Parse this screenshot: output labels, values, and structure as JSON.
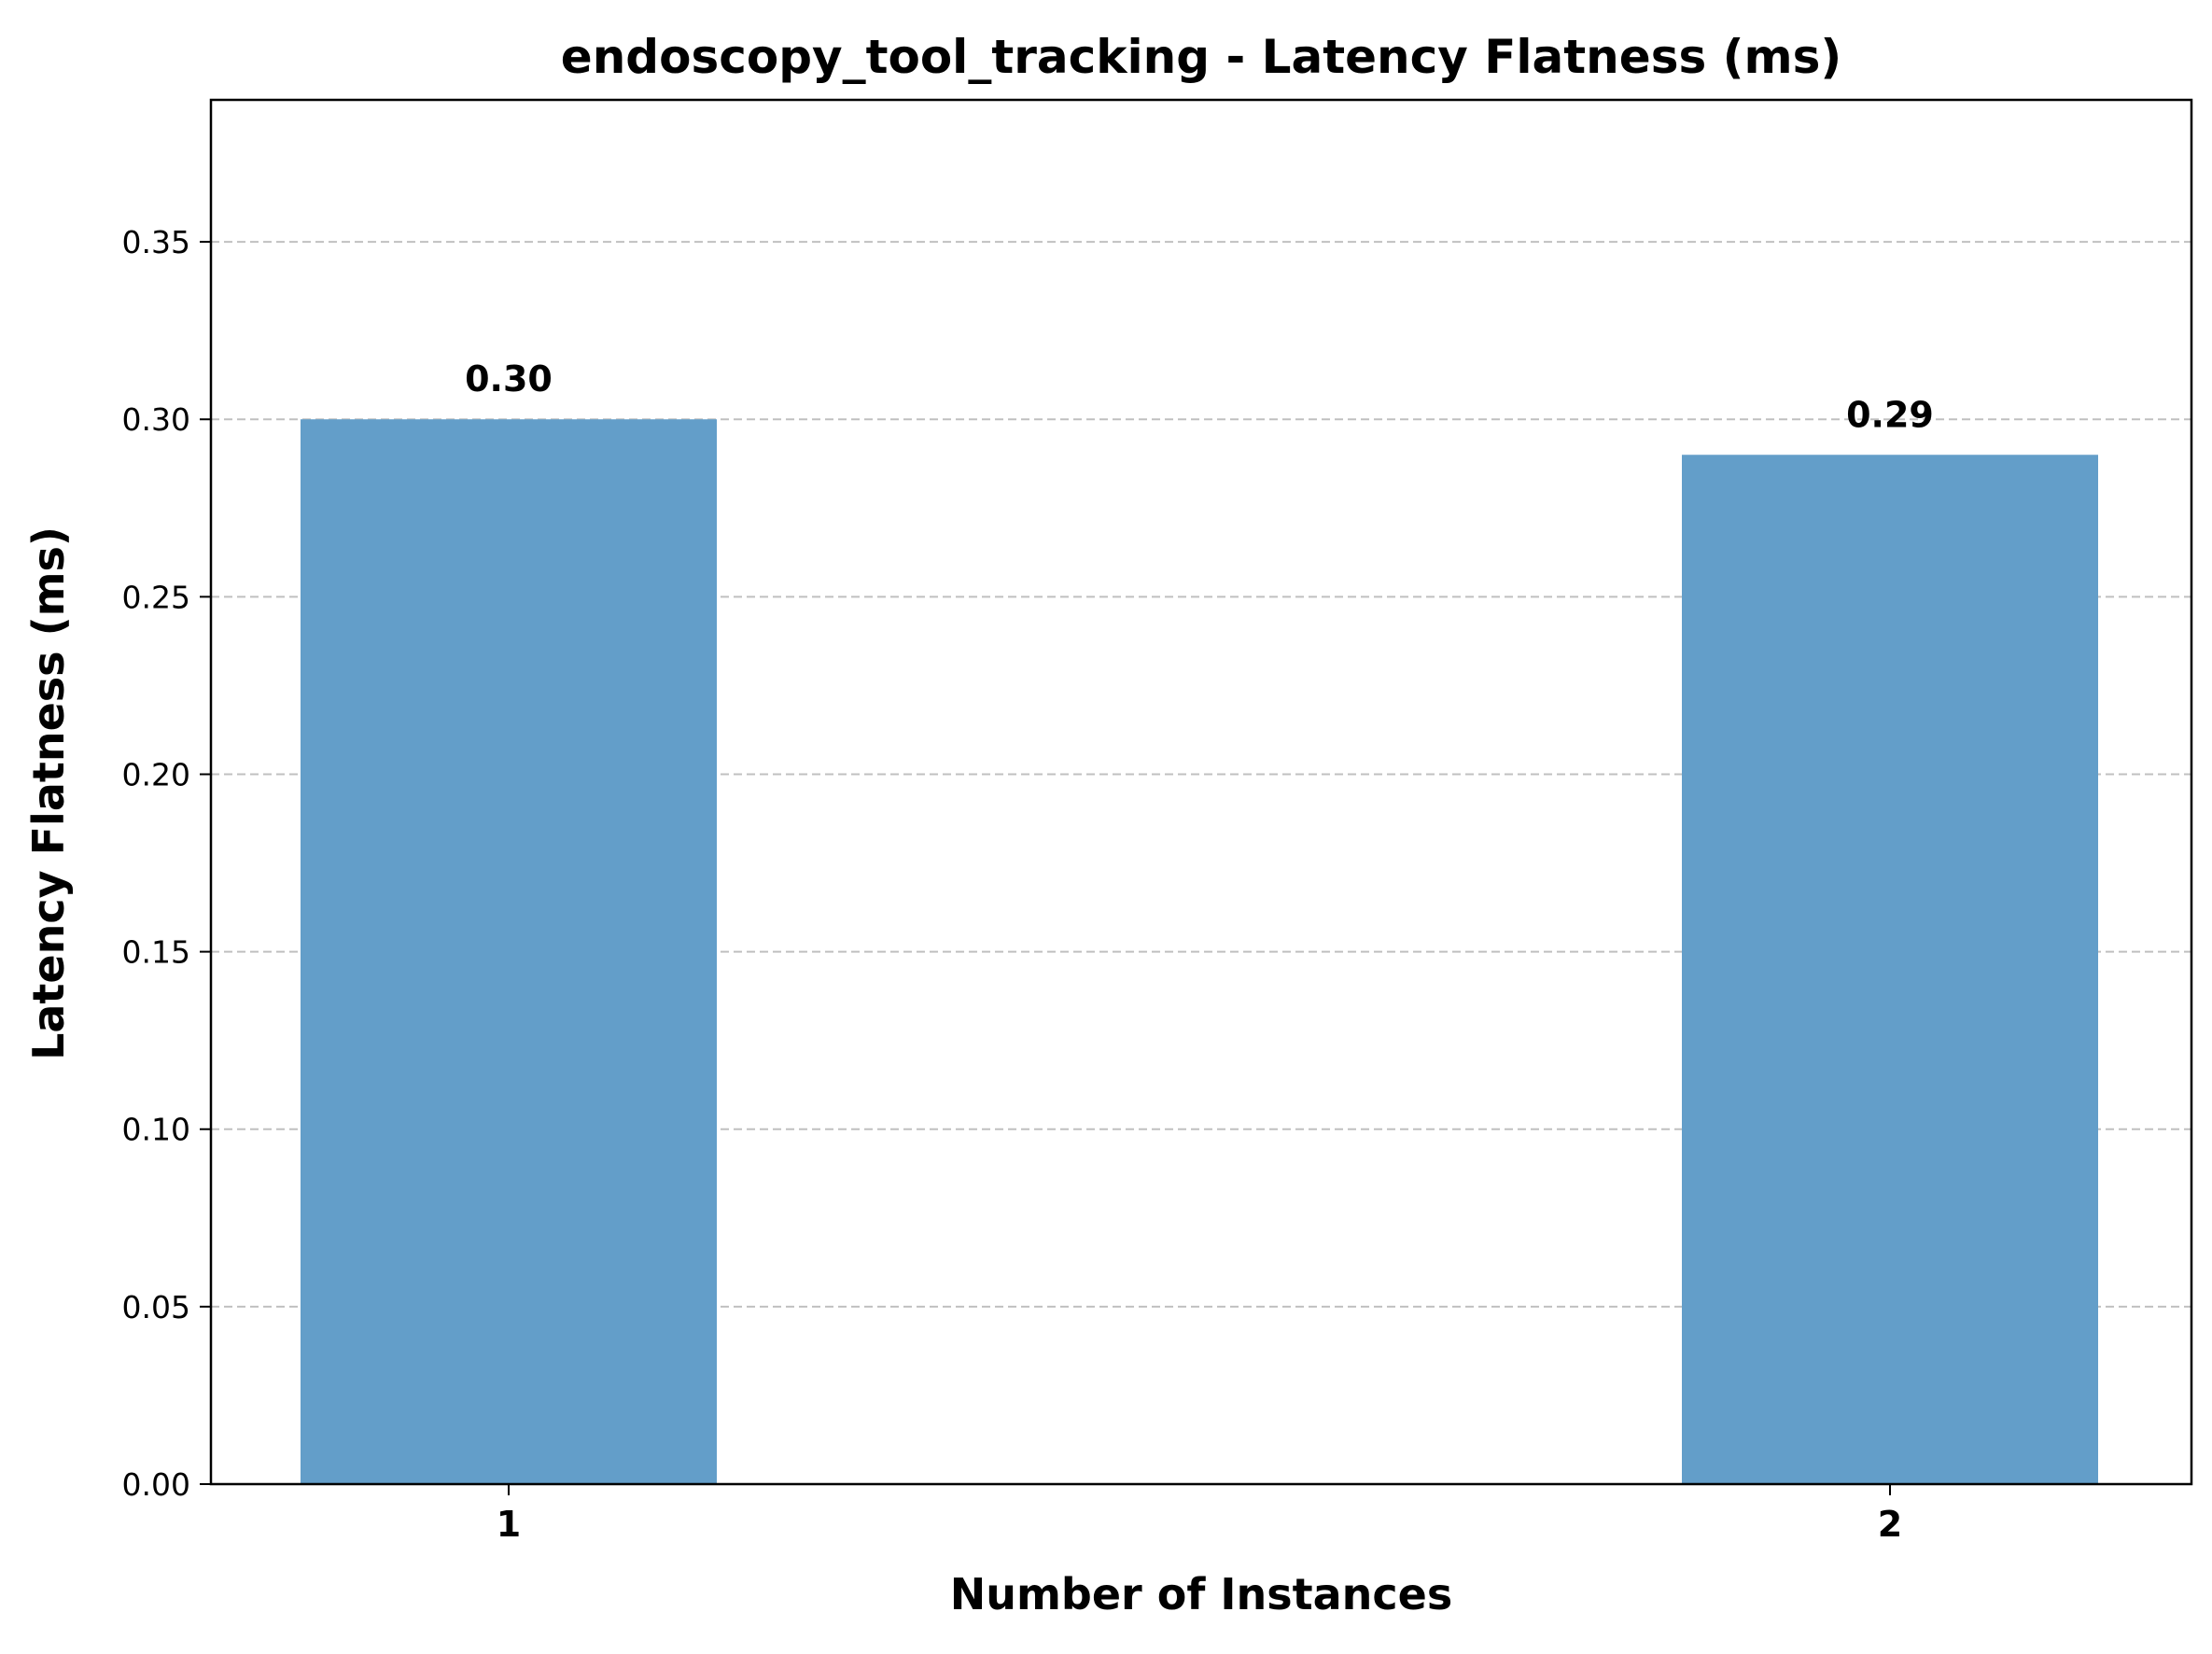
{
  "chart_data": {
    "type": "bar",
    "title": "endoscopy_tool_tracking - Latency Flatness (ms)",
    "xlabel": "Number of Instances",
    "ylabel": "Latency Flatness (ms)",
    "categories": [
      "1",
      "2"
    ],
    "values": [
      0.3,
      0.29
    ],
    "value_labels": [
      "0.30",
      "0.29"
    ],
    "ylim": [
      0,
      0.39
    ],
    "yticks": [
      0.0,
      0.05,
      0.1,
      0.15,
      0.2,
      0.25,
      0.3,
      0.35
    ],
    "ytick_labels": [
      "0.00",
      "0.05",
      "0.10",
      "0.15",
      "0.20",
      "0.25",
      "0.30",
      "0.35"
    ],
    "grid": "y-dashed",
    "legend": "none",
    "colors": {
      "bar": "#639ec9",
      "grid": "#c0c0c0",
      "axis": "#000000",
      "text": "#000000"
    }
  }
}
